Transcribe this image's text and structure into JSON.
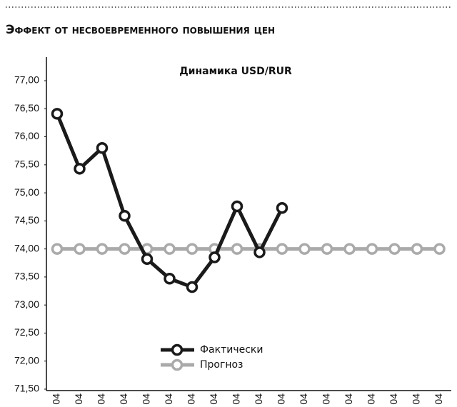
{
  "chart_data": {
    "type": "line",
    "title": "Эффект от несвоевременного повышения цен",
    "subtitle": "Динамика USD/RUR",
    "categories": [
      "04",
      "04",
      "04",
      "04",
      "04",
      "04",
      "04",
      "04",
      "04",
      "04",
      "04",
      "04",
      "04",
      "04",
      "04",
      "04",
      "04",
      "04"
    ],
    "series": [
      {
        "name": "Фактически",
        "color": "#1a1a1a",
        "values": [
          76.41,
          75.43,
          75.8,
          74.59,
          73.82,
          73.47,
          73.32,
          73.85,
          74.76,
          73.94,
          74.73,
          null,
          null,
          null,
          null,
          null,
          null,
          null
        ]
      },
      {
        "name": "Прогноз",
        "color": "#aaaaaa",
        "values": [
          74,
          74,
          74,
          74,
          74,
          74,
          74,
          74,
          74,
          74,
          74,
          74,
          74,
          74,
          74,
          74,
          74,
          74
        ]
      }
    ],
    "ylim": [
      71.5,
      77.0
    ],
    "yticks": [
      {
        "value": 71.5,
        "label": "71,50"
      },
      {
        "value": 72,
        "label": "72,00"
      },
      {
        "value": 72.5,
        "label": "72,50"
      },
      {
        "value": 73,
        "label": "73,00"
      },
      {
        "value": 73.5,
        "label": "73,50"
      },
      {
        "value": 74,
        "label": "74,00"
      },
      {
        "value": 74.5,
        "label": "74,50"
      },
      {
        "value": 75,
        "label": "75,00"
      },
      {
        "value": 75.5,
        "label": "75,50"
      },
      {
        "value": 76,
        "label": "76,00"
      },
      {
        "value": 76.5,
        "label": "76,50"
      },
      {
        "value": 77,
        "label": "77,00"
      }
    ],
    "grid": false,
    "legend": "bottom"
  }
}
